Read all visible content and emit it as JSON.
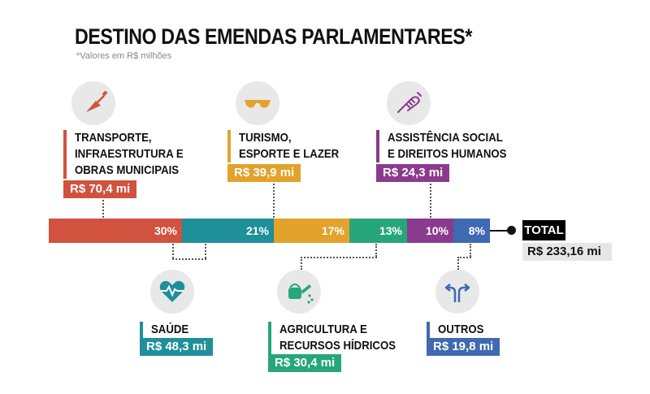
{
  "title": "DESTINO DAS EMENDAS PARLAMENTARES*",
  "subtitle": "*Valores em R$ milhões",
  "chart_data": {
    "type": "bar",
    "orientation": "stacked-horizontal",
    "categories": [
      "Transporte, Infraestrutura e Obras Municipais",
      "Saúde",
      "Turismo, Esporte e Lazer",
      "Agricultura e Recursos Hídricos",
      "Assistência Social e Direitos Humanos",
      "Outros"
    ],
    "values": [
      70.4,
      48.3,
      39.9,
      30.4,
      24.3,
      19.8
    ],
    "percent_labels": [
      "30%",
      "21%",
      "17%",
      "13%",
      "10%",
      "8%"
    ],
    "colors": [
      "#d1523f",
      "#1f8f99",
      "#e3a22b",
      "#27a67b",
      "#8a3b8f",
      "#3f69b0"
    ],
    "total": 233.16
  },
  "segments": [
    {
      "label_lines": [
        "TRANSPORTE,",
        "INFRAESTRUTURA E",
        "OBRAS MUNICIPAIS"
      ],
      "value_text": "R$ 70,4 mi",
      "icon": "trowel-icon"
    },
    {
      "label_lines": [
        "SAÚDE"
      ],
      "value_text": "R$ 48,3 mi",
      "icon": "heart-pulse-icon"
    },
    {
      "label_lines": [
        "TURISMO,",
        "ESPORTE E LAZER"
      ],
      "value_text": "R$ 39,9 mi",
      "icon": "sunglasses-icon"
    },
    {
      "label_lines": [
        "AGRICULTURA E",
        "RECURSOS HÍDRICOS"
      ],
      "value_text": "R$ 30,4 mi",
      "icon": "watering-can-icon"
    },
    {
      "label_lines": [
        "ASSISTÊNCIA SOCIAL",
        "E DIREITOS HUMANOS"
      ],
      "value_text": "R$ 24,3 mi",
      "icon": "handshake-icon"
    },
    {
      "label_lines": [
        "OUTROS"
      ],
      "value_text": "R$ 19,8 mi",
      "icon": "direction-arrows-icon"
    }
  ],
  "total": {
    "label": "TOTAL",
    "value_text": "R$ 233,16 mi"
  }
}
